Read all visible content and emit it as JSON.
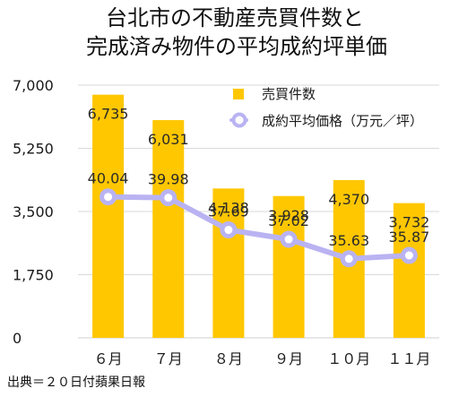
{
  "title_lines": [
    "台北市の不動産売買件数と",
    "完成済み物件の平均成約坪単価"
  ],
  "source_note": "出典＝２０日付蘋果日報",
  "colors": {
    "bar": "#FFC700",
    "line": "#B9B3F2",
    "grid": "#D9D9D9",
    "axis": "#D9D9D9",
    "text": "#1A1A1A",
    "background": "#FFFFFF"
  },
  "chart_data": {
    "type": "bar",
    "title": "台北市の不動産売買件数と完成済み物件の平均成約坪単価",
    "categories": [
      "６月",
      "７月",
      "８月",
      "９月",
      "１０月",
      "１１月"
    ],
    "series": [
      {
        "name": "売買件数",
        "type": "bar",
        "values": [
          6735,
          6031,
          4138,
          3928,
          4370,
          3732
        ],
        "labels": [
          "6,735",
          "6,031",
          "4,138",
          "3,928",
          "4,370",
          "3,732"
        ]
      },
      {
        "name": "成約平均価格（万元／坪）",
        "type": "line",
        "values": [
          40.04,
          39.98,
          37.69,
          37.02,
          35.63,
          35.87
        ],
        "labels": [
          "40.04",
          "39.98",
          "37.69",
          "37.02",
          "35.63",
          "35.87"
        ]
      }
    ],
    "y_ticks": [
      "7,000",
      "5,250",
      "3,500",
      "1,750",
      "0"
    ],
    "y_tick_values": [
      7000,
      5250,
      3500,
      1750,
      0
    ],
    "ylim": [
      0,
      7000
    ],
    "line_ylim": [
      30,
      48
    ],
    "grid": true,
    "legend_position": "top-right"
  }
}
